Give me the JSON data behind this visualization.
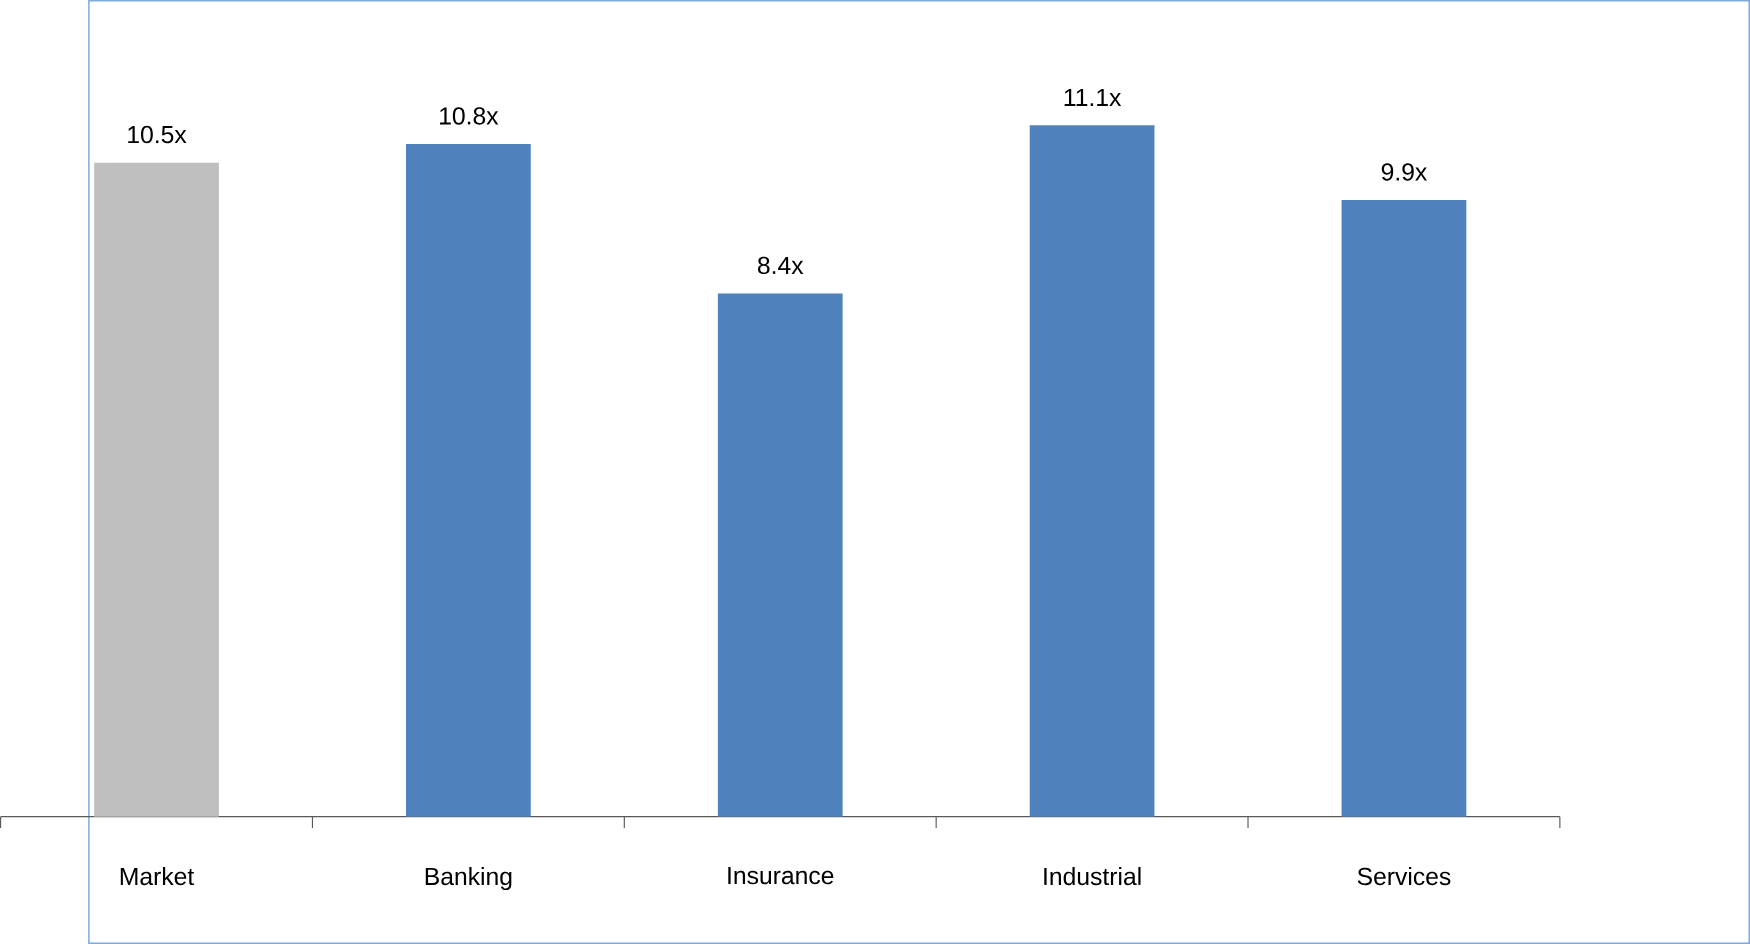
{
  "chart_data": {
    "type": "bar",
    "categories": [
      "Market",
      "Banking",
      "Insurance",
      "Industrial",
      "Services"
    ],
    "values": [
      10.5,
      10.8,
      8.4,
      11.1,
      9.9
    ],
    "colors": [
      "#bfbfbf",
      "#4f81bd",
      "#4f81bd",
      "#4f81bd",
      "#4f81bd"
    ],
    "value_labels": [
      "10.5x",
      "10.8x",
      "8.4x",
      "11.1x",
      "9.9x"
    ]
  }
}
